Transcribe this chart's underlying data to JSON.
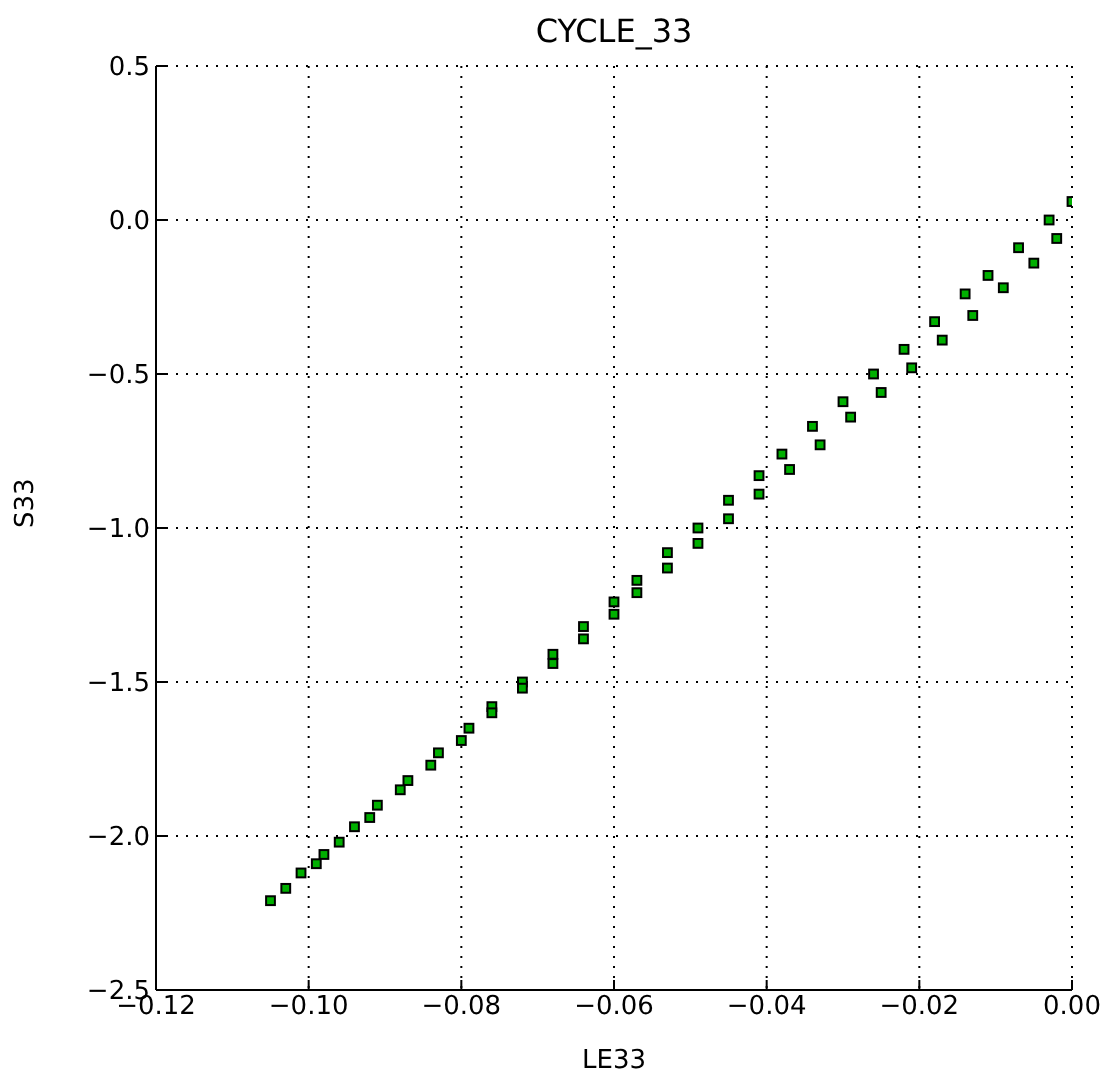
{
  "chart_data": {
    "type": "scatter",
    "title": "CYCLE_33",
    "xlabel": "LE33",
    "ylabel": "S33",
    "series": [
      {
        "color": "#00b000",
        "x": [
          -0.105,
          -0.101,
          -0.098,
          -0.094,
          -0.091,
          -0.087,
          -0.083,
          -0.079,
          -0.076,
          -0.072,
          -0.068,
          -0.064,
          -0.06,
          -0.057,
          -0.053,
          -0.049,
          -0.045,
          -0.041,
          -0.038,
          -0.034,
          -0.03,
          -0.026,
          -0.022,
          -0.018,
          -0.014,
          -0.011,
          -0.007,
          -0.003,
          0.0,
          -0.103,
          -0.099,
          -0.096,
          -0.092,
          -0.088,
          -0.084,
          -0.08,
          -0.076,
          -0.072,
          -0.068,
          -0.064,
          -0.06,
          -0.057,
          -0.053,
          -0.049,
          -0.045,
          -0.041,
          -0.037,
          -0.033,
          -0.029,
          -0.025,
          -0.021,
          -0.017,
          -0.013,
          -0.009,
          -0.005,
          -0.002
        ],
        "values": [
          -2.21,
          -2.12,
          -2.06,
          -1.97,
          -1.9,
          -1.82,
          -1.73,
          -1.65,
          -1.58,
          -1.5,
          -1.41,
          -1.32,
          -1.24,
          -1.17,
          -1.08,
          -1.0,
          -0.91,
          -0.83,
          -0.76,
          -0.67,
          -0.59,
          -0.5,
          -0.42,
          -0.33,
          -0.24,
          -0.18,
          -0.09,
          0.0,
          0.06,
          -2.17,
          -2.09,
          -2.02,
          -1.94,
          -1.85,
          -1.77,
          -1.69,
          -1.6,
          -1.52,
          -1.44,
          -1.36,
          -1.28,
          -1.21,
          -1.13,
          -1.05,
          -0.97,
          -0.89,
          -0.81,
          -0.73,
          -0.64,
          -0.56,
          -0.48,
          -0.39,
          -0.31,
          -0.22,
          -0.14,
          -0.06
        ]
      }
    ],
    "xlim": [
      -0.12,
      0.0
    ],
    "xticks": [
      {
        "value": -0.12,
        "label": "−0.12"
      },
      {
        "value": -0.1,
        "label": "−0.10"
      },
      {
        "value": -0.08,
        "label": "−0.08"
      },
      {
        "value": -0.06,
        "label": "−0.06"
      },
      {
        "value": -0.04,
        "label": "−0.04"
      },
      {
        "value": -0.02,
        "label": "−0.02"
      },
      {
        "value": 0.0,
        "label": "0.00"
      }
    ],
    "ylim": [
      -2.5,
      0.5
    ],
    "yticks": [
      {
        "value": -2.5,
        "label": "−2.5"
      },
      {
        "value": -2.0,
        "label": "−2.0"
      },
      {
        "value": -1.5,
        "label": "−1.5"
      },
      {
        "value": -1.0,
        "label": "−1.0"
      },
      {
        "value": -0.5,
        "label": "−0.5"
      },
      {
        "value": 0.0,
        "label": "0.0"
      },
      {
        "value": 0.5,
        "label": "0.5"
      }
    ],
    "grid": true,
    "marker": "square",
    "legend": false
  }
}
